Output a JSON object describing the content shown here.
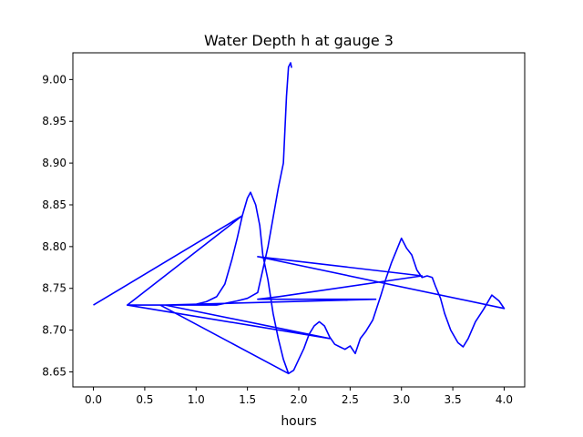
{
  "chart_data": {
    "type": "line",
    "title": "Water Depth h at gauge 3",
    "xlabel": "hours",
    "ylabel": "",
    "xlim": [
      -0.2,
      4.2
    ],
    "ylim": [
      8.632,
      9.032
    ],
    "xticks": [
      0.0,
      0.5,
      1.0,
      1.5,
      2.0,
      2.5,
      3.0,
      3.5,
      4.0
    ],
    "xtick_labels": [
      "0.0",
      "0.5",
      "1.0",
      "1.5",
      "2.0",
      "2.5",
      "3.0",
      "3.5",
      "4.0"
    ],
    "yticks": [
      8.65,
      8.7,
      8.75,
      8.8,
      8.85,
      8.9,
      8.95,
      9.0
    ],
    "ytick_labels": [
      "8.65",
      "8.70",
      "8.75",
      "8.80",
      "8.85",
      "8.90",
      "8.95",
      "9.00"
    ],
    "grid": false,
    "legend": "none",
    "series": [
      {
        "color": "#0000ff",
        "points": [
          [
            0.0,
            8.73
          ],
          [
            1.45,
            8.837
          ],
          [
            0.33,
            8.73
          ],
          [
            0.8,
            8.73
          ],
          [
            1.0,
            8.731
          ],
          [
            1.1,
            8.734
          ],
          [
            1.2,
            8.74
          ],
          [
            1.28,
            8.755
          ],
          [
            1.35,
            8.785
          ],
          [
            1.4,
            8.81
          ],
          [
            1.45,
            8.837
          ],
          [
            1.5,
            8.858
          ],
          [
            1.53,
            8.865
          ],
          [
            1.58,
            8.85
          ],
          [
            1.62,
            8.825
          ],
          [
            1.65,
            8.79
          ],
          [
            1.7,
            8.76
          ],
          [
            1.75,
            8.72
          ],
          [
            1.8,
            8.69
          ],
          [
            1.85,
            8.665
          ],
          [
            1.9,
            8.648
          ],
          [
            0.65,
            8.73
          ],
          [
            1.9,
            8.648
          ],
          [
            1.95,
            8.652
          ],
          [
            2.0,
            8.665
          ],
          [
            2.05,
            8.678
          ],
          [
            2.1,
            8.695
          ],
          [
            2.15,
            8.705
          ],
          [
            2.2,
            8.71
          ],
          [
            2.25,
            8.705
          ],
          [
            2.3,
            8.692
          ],
          [
            2.35,
            8.683
          ],
          [
            2.4,
            8.68
          ],
          [
            2.45,
            8.677
          ],
          [
            2.5,
            8.681
          ],
          [
            2.55,
            8.672
          ],
          [
            2.6,
            8.69
          ],
          [
            2.65,
            8.698
          ],
          [
            2.72,
            8.712
          ],
          [
            2.8,
            8.742
          ],
          [
            2.85,
            8.762
          ],
          [
            2.9,
            8.78
          ],
          [
            2.95,
            8.795
          ],
          [
            3.0,
            8.81
          ],
          [
            3.05,
            8.798
          ],
          [
            3.1,
            8.79
          ],
          [
            3.15,
            8.772
          ],
          [
            3.2,
            8.763
          ],
          [
            3.25,
            8.765
          ],
          [
            3.3,
            8.763
          ],
          [
            3.33,
            8.753
          ],
          [
            3.38,
            8.738
          ],
          [
            3.42,
            8.72
          ],
          [
            3.48,
            8.7
          ],
          [
            3.55,
            8.685
          ],
          [
            3.6,
            8.68
          ],
          [
            3.65,
            8.69
          ],
          [
            3.72,
            8.71
          ],
          [
            3.8,
            8.725
          ],
          [
            3.88,
            8.742
          ],
          [
            3.95,
            8.735
          ],
          [
            4.0,
            8.726
          ],
          [
            1.6,
            8.788
          ],
          [
            3.2,
            8.765
          ],
          [
            1.8,
            8.74
          ],
          [
            1.6,
            8.737
          ],
          [
            2.75,
            8.737
          ],
          [
            0.7,
            8.73
          ],
          [
            2.3,
            8.69
          ],
          [
            0.33,
            8.73
          ],
          [
            1.2,
            8.73
          ],
          [
            1.4,
            8.735
          ],
          [
            1.5,
            8.738
          ],
          [
            1.6,
            8.745
          ],
          [
            1.7,
            8.8
          ],
          [
            1.8,
            8.87
          ],
          [
            1.85,
            8.9
          ],
          [
            1.88,
            8.98
          ],
          [
            1.9,
            9.015
          ],
          [
            1.92,
            9.02
          ],
          [
            1.93,
            9.014
          ]
        ]
      }
    ]
  }
}
